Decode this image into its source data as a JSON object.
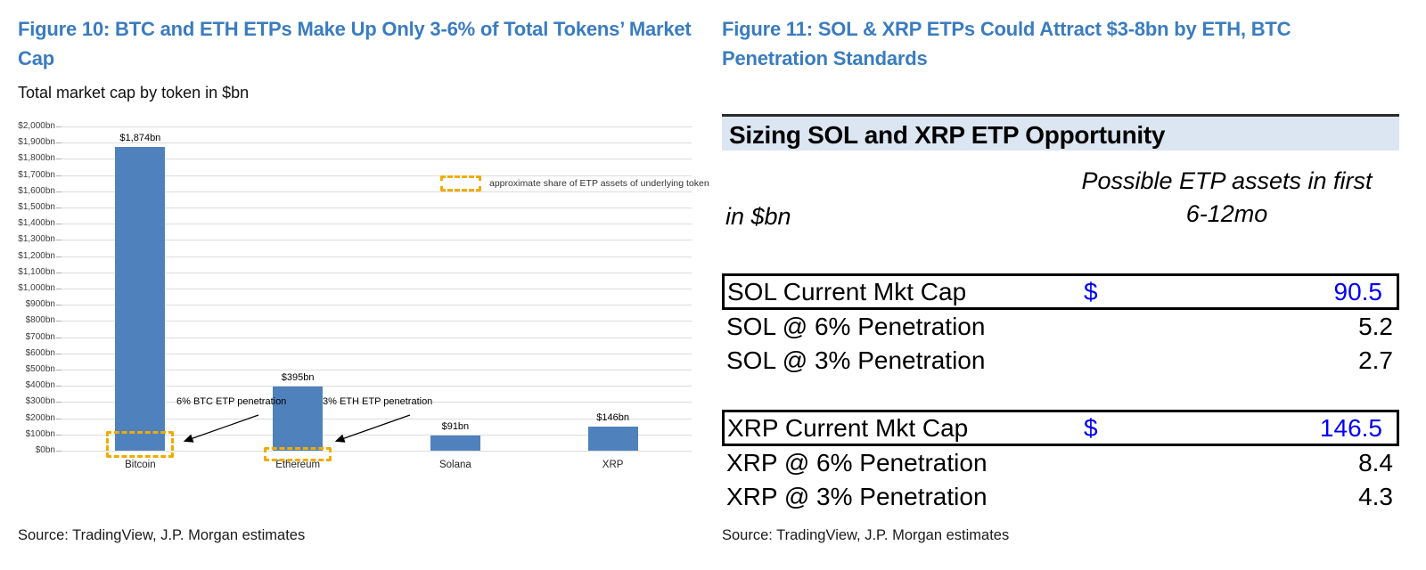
{
  "colors": {
    "figure_title_blue": "#3a7cbf",
    "bar_blue": "#4f81bd",
    "etp_dashed_gold": "#efac00",
    "table_header_band": "#dbe6f2",
    "highlight_value_blue": "#0000f5",
    "gridline_gray": "#dcdcdc"
  },
  "left_panel": {
    "figure_title": "Figure 10: BTC and ETH ETPs Make Up Only 3-6% of Total Tokens’ Market Cap",
    "subtitle": "Total market cap by token in $bn",
    "source": "Source: TradingView, J.P. Morgan estimates"
  },
  "chart_data": {
    "type": "bar",
    "title": "Total market cap by token in $bn",
    "categories": [
      "Bitcoin",
      "Ethereum",
      "Solana",
      "XRP"
    ],
    "values": [
      1874,
      395,
      91,
      146
    ],
    "bar_labels": [
      "$1,874bn",
      "$395bn",
      "$91bn",
      "$146bn"
    ],
    "xlabel": "",
    "ylabel": "",
    "ylim": [
      0,
      2000
    ],
    "ytick_step": 100,
    "ytick_format": "$N,NNNbn",
    "grid": true,
    "legend": {
      "label": "approximate share of ETP assets of underlying token",
      "swatch": "dashed-gold-box",
      "position": "inside-upper-right"
    },
    "annotations": [
      {
        "text": "6% BTC ETP penetration",
        "target_category": "Bitcoin",
        "overlay_value_bn": 112
      },
      {
        "text": "3% ETH ETP penetration",
        "target_category": "Ethereum",
        "overlay_value_bn": 12
      }
    ]
  },
  "right_panel": {
    "figure_title": "Figure 11: SOL & XRP ETPs Could Attract $3-8bn by ETH, BTC Penetration Standards",
    "table": {
      "title": "Sizing SOL and XRP ETP Opportunity",
      "unit_label": "in $bn",
      "value_header": "Possible ETP assets in first 6-12mo",
      "rows": [
        {
          "label": "SOL Current Mkt Cap",
          "currency": "$",
          "value": "90.5",
          "boxed": true,
          "blue": true
        },
        {
          "label": "SOL @ 6% Penetration",
          "currency": "",
          "value": "5.2",
          "boxed": false,
          "blue": false
        },
        {
          "label": "SOL @ 3% Penetration",
          "currency": "",
          "value": "2.7",
          "boxed": false,
          "blue": false
        },
        {
          "spacer": true
        },
        {
          "label": "XRP Current Mkt Cap",
          "currency": "$",
          "value": "146.5",
          "boxed": true,
          "blue": true
        },
        {
          "label": "XRP @ 6% Penetration",
          "currency": "",
          "value": "8.4",
          "boxed": false,
          "blue": false
        },
        {
          "label": "XRP @ 3% Penetration",
          "currency": "",
          "value": "4.3",
          "boxed": false,
          "blue": false
        }
      ]
    },
    "source": "Source: TradingView, J.P. Morgan estimates"
  }
}
